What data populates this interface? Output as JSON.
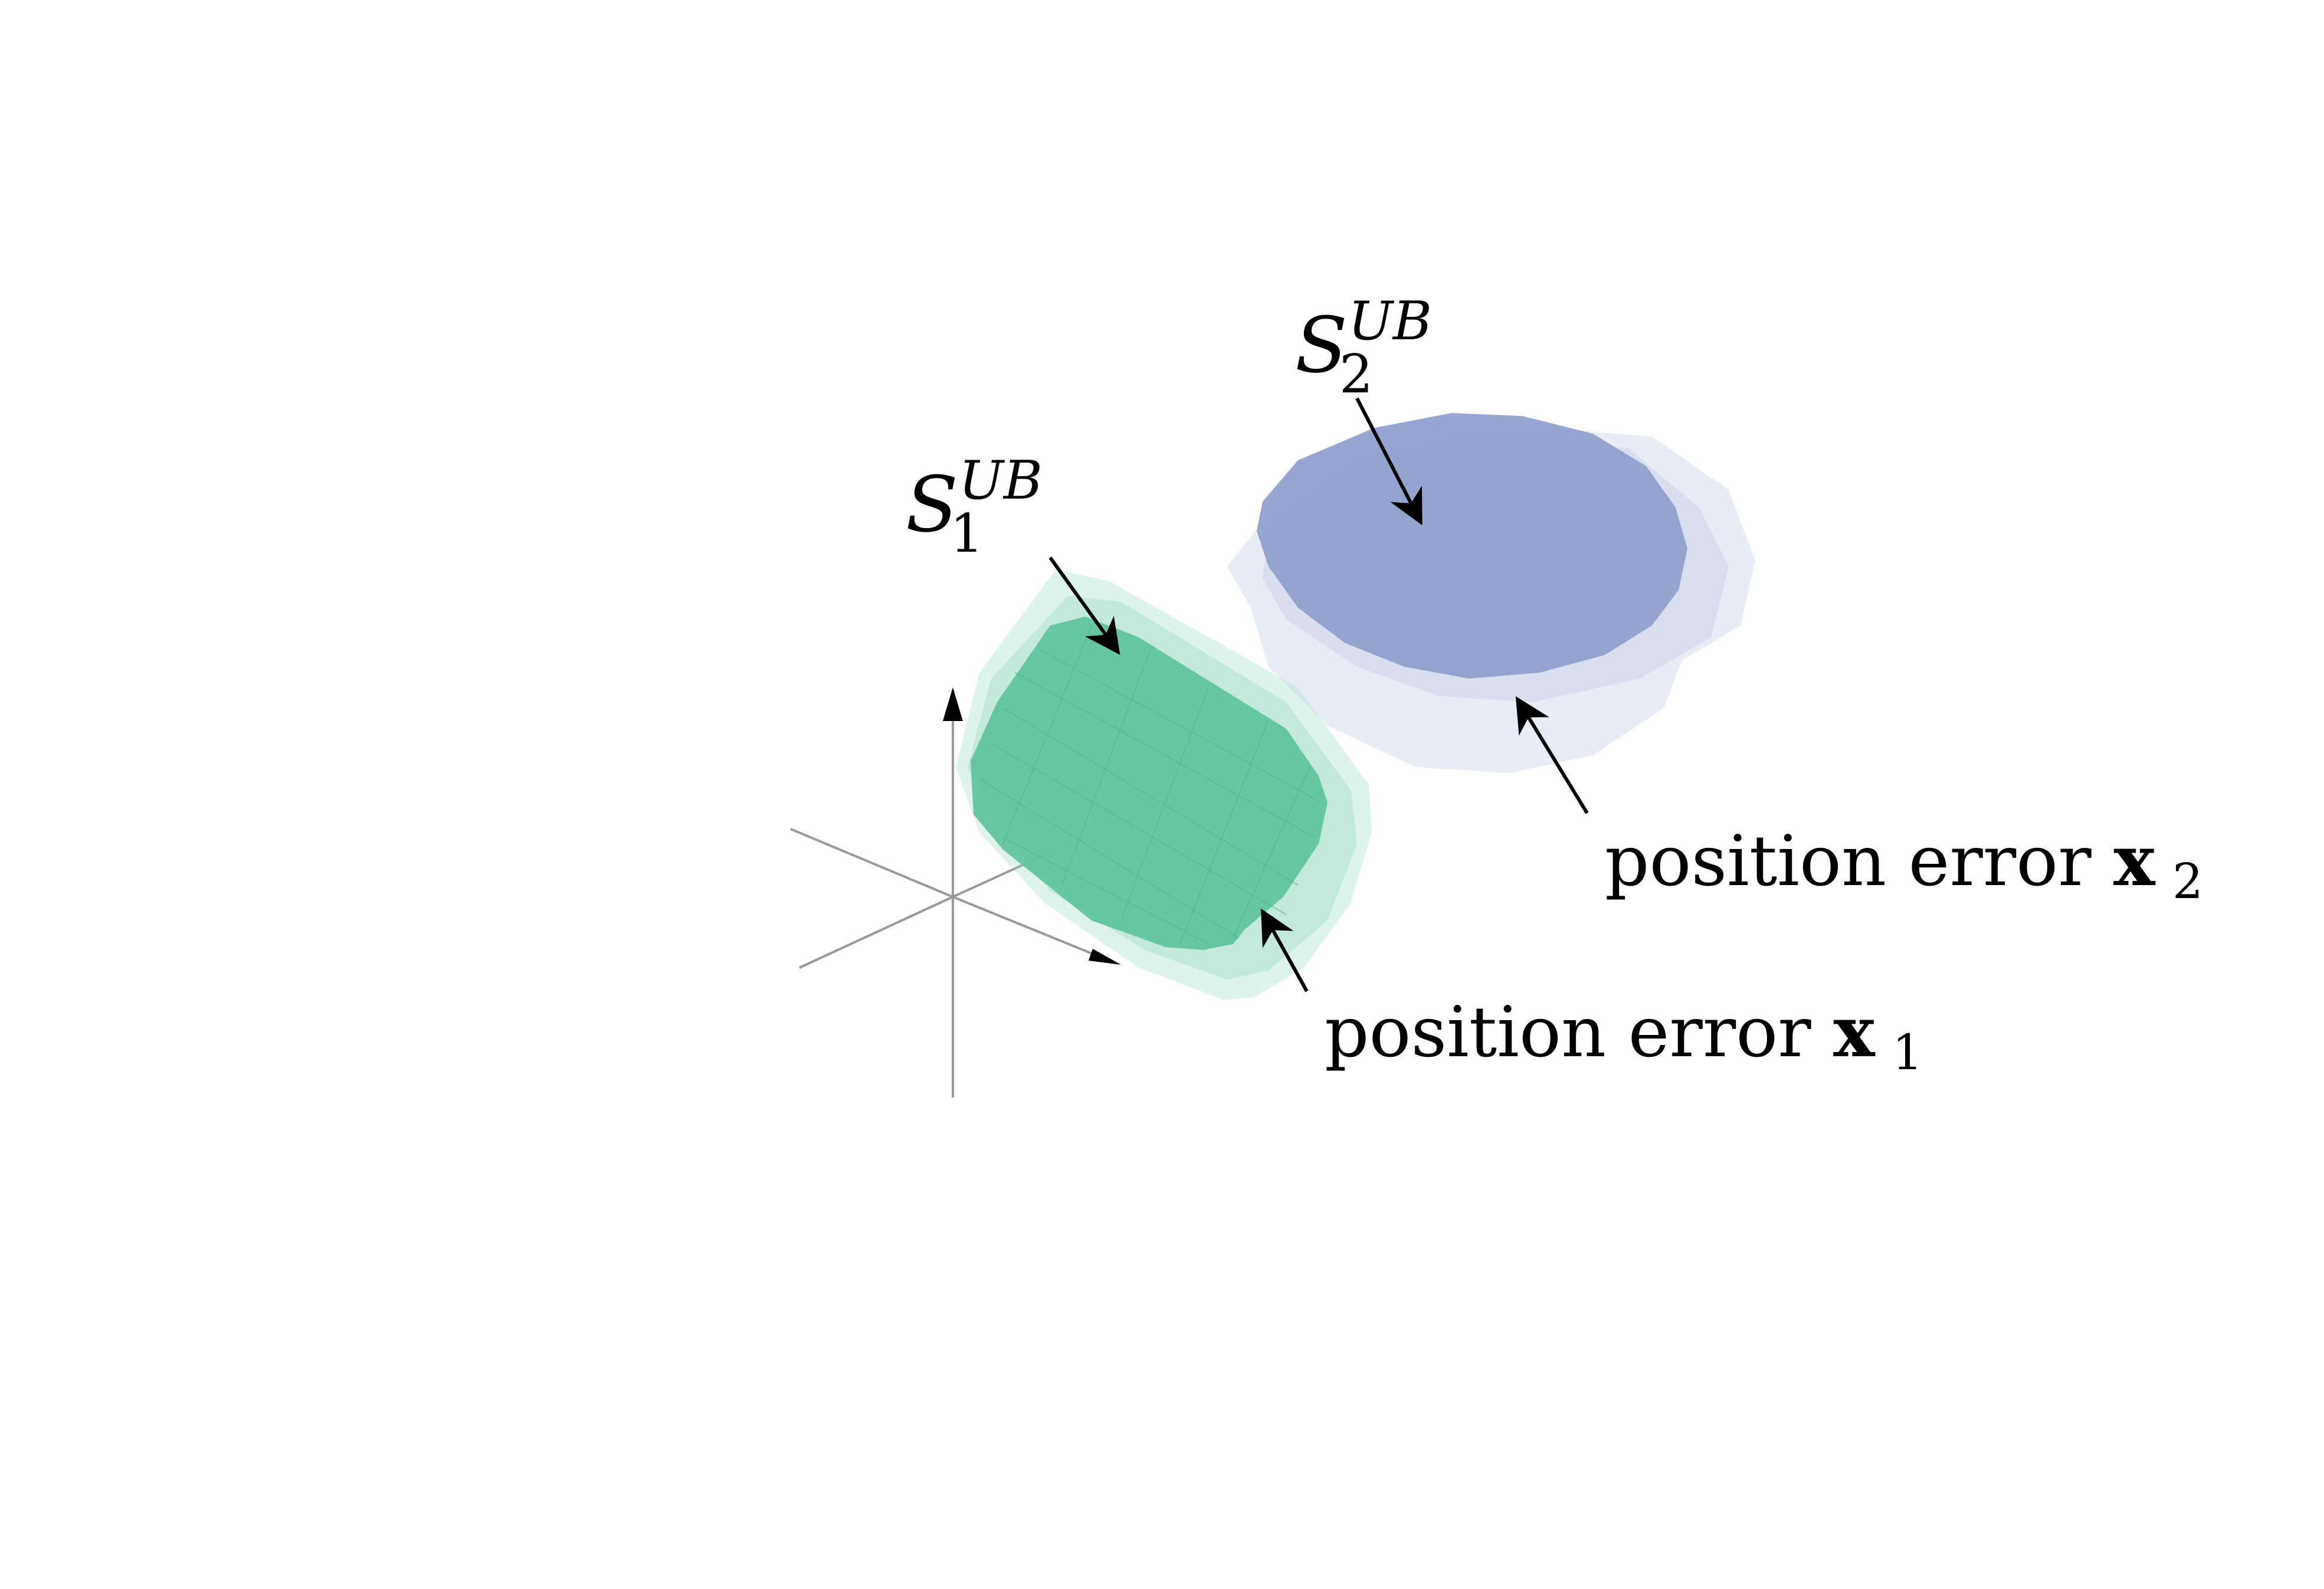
{
  "labels": {
    "set1": {
      "base": "S",
      "sub": "1",
      "sup": "UB"
    },
    "set2": {
      "base": "S",
      "sub": "2",
      "sup": "UB"
    },
    "error1": {
      "text": "position error ",
      "bold": "x",
      "sub": "1"
    },
    "error2": {
      "text": "position error ",
      "bold": "x",
      "sub": "2"
    }
  },
  "colors": {
    "green_core": "#5fc39c",
    "green_halo": "#8fd8bc",
    "blue_core": "#8f9fcc",
    "blue_halo": "#ccd4e8",
    "axes": "#999999",
    "arrow": "#000000"
  }
}
